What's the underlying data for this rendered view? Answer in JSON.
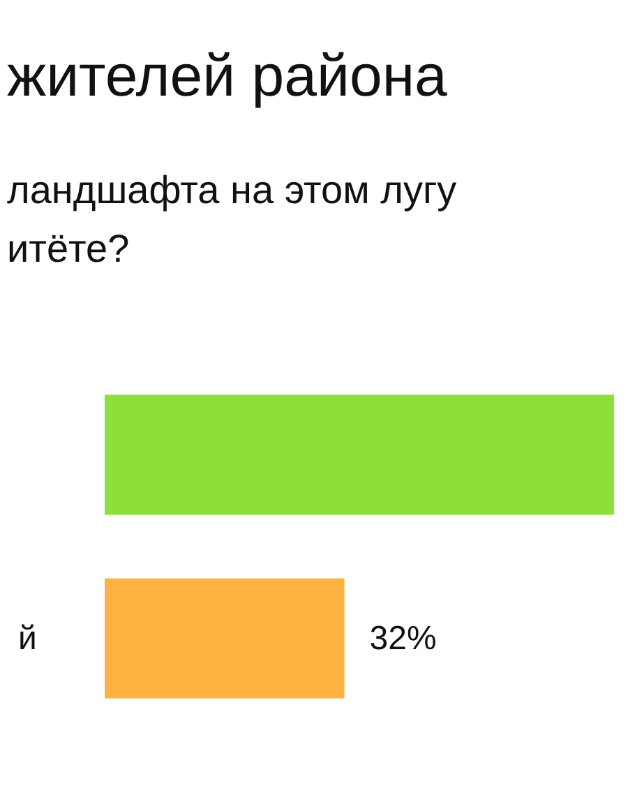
{
  "chart_data": {
    "type": "bar",
    "orientation": "horizontal",
    "title": "жителей района",
    "subtitle": "ландшафта на этом лугу\nитёте?",
    "categories": [
      null,
      "й"
    ],
    "values": [
      68,
      32
    ],
    "colors": [
      "#8fdf3a",
      "#fdb242"
    ],
    "value_labels": [
      null,
      "32%"
    ]
  }
}
